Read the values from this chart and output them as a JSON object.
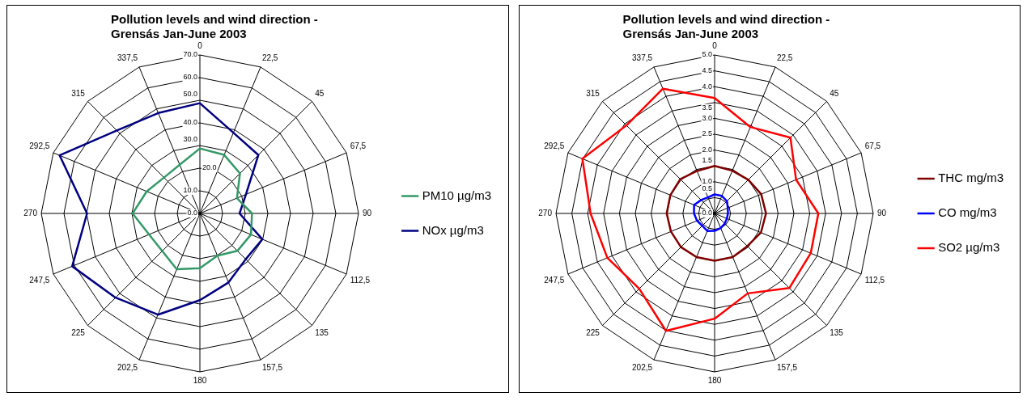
{
  "chart_data": [
    {
      "type": "radar",
      "title": "Pollution levels and wind direction -\nGrensás Jan-June 2003",
      "categories": [
        "0",
        "22,5",
        "45",
        "67,5",
        "90",
        "112,5",
        "135",
        "157,5",
        "180",
        "202,5",
        "225",
        "247,5",
        "270",
        "292,5",
        "315",
        "337,5"
      ],
      "series": [
        {
          "name": "PM10 µg/m3",
          "color": "#339966",
          "values": [
            28.7,
            28,
            25,
            17.7,
            23,
            24.4,
            23.4,
            20.2,
            24.2,
            26.7,
            23.5,
            24.3,
            29.7,
            25.4,
            22.4,
            23.3
          ]
        },
        {
          "name": "NOx µg/m3",
          "color": "#000080",
          "values": [
            48.7,
            38.6,
            36.5,
            22,
            17.5,
            29.8,
            28.6,
            33,
            38.3,
            48.4,
            52.6,
            61,
            49.8,
            67,
            51.8,
            48
          ]
        }
      ],
      "ylim": [
        0,
        70
      ],
      "yticks": [
        {
          "value": 0,
          "label": "0.0"
        },
        {
          "value": 10,
          "label": "10.0"
        },
        {
          "value": 20,
          "label": "20.0"
        },
        {
          "value": 30,
          "label": "30.0"
        },
        {
          "value": 40,
          "label": "40.0"
        },
        {
          "value": 50,
          "label": "50.0"
        },
        {
          "value": 60,
          "label": "60.0"
        },
        {
          "value": 70,
          "label": "70.0"
        }
      ],
      "grid": true,
      "legend": "right",
      "marker": "none",
      "line_style": "solid"
    },
    {
      "type": "radar",
      "title": "Pollution levels and wind direction -\nGrensás Jan-June 2003",
      "categories": [
        "0",
        "22,5",
        "45",
        "67,5",
        "90",
        "112,5",
        "135",
        "157,5",
        "180",
        "202,5",
        "225",
        "247,5",
        "270",
        "292,5",
        "315",
        "337,5"
      ],
      "series": [
        {
          "name": "THC mg/m3",
          "color": "#800000",
          "values": [
            1.5,
            1.46,
            1.5,
            1.59,
            1.62,
            1.58,
            1.46,
            1.49,
            1.49,
            1.49,
            1.5,
            1.49,
            1.51,
            1.51,
            1.53,
            1.45
          ]
        },
        {
          "name": "CO mg/m3",
          "color": "#0000ff",
          "values": [
            0.6,
            0.6,
            0.55,
            0.45,
            0.42,
            0.42,
            0.45,
            0.5,
            0.55,
            0.6,
            0.55,
            0.6,
            0.65,
            0.7,
            0.6,
            0.55
          ]
        },
        {
          "name": "SO2 µg/m3",
          "color": "#ff0000",
          "values": [
            3.64,
            2.95,
            3.38,
            2.78,
            3.27,
            3.28,
            3.33,
            2.73,
            3.32,
            4.01,
            3.36,
            3.66,
            3.91,
            4.51,
            3.93,
            4.26
          ]
        }
      ],
      "ylim": [
        0,
        5
      ],
      "yticks": [
        {
          "value": 0,
          "label": "0.0"
        },
        {
          "value": 0.5,
          "label": "0.5"
        },
        {
          "value": 1,
          "label": "1.0"
        },
        {
          "value": 1.5,
          "label": "1.5"
        },
        {
          "value": 2,
          "label": "2.0"
        },
        {
          "value": 2.5,
          "label": "2.5"
        },
        {
          "value": 3,
          "label": "3.0"
        },
        {
          "value": 3.5,
          "label": "3.5"
        },
        {
          "value": 4,
          "label": "4.0"
        },
        {
          "value": 4.5,
          "label": "4.5"
        },
        {
          "value": 5,
          "label": "5.0"
        }
      ],
      "grid": true,
      "legend": "right",
      "marker": "none",
      "line_style": "solid"
    }
  ]
}
